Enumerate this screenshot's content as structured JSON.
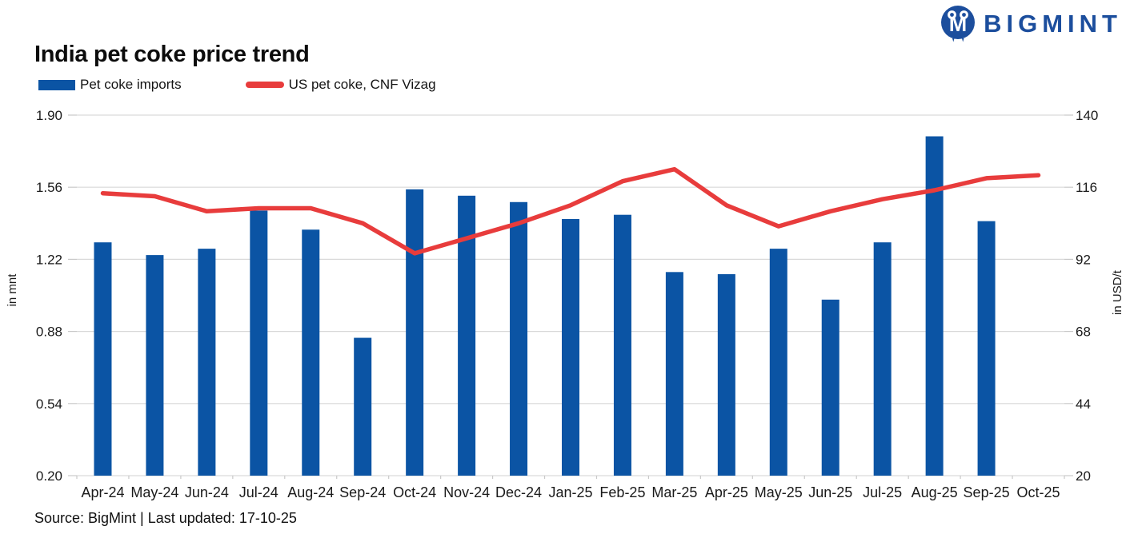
{
  "logo": {
    "text": "BIGMINT",
    "color": "#1C4E9D"
  },
  "header": {
    "title": "India pet coke price trend"
  },
  "legend": [
    {
      "label": "Pet coke imports",
      "type": "bar",
      "color": "#0B54A4"
    },
    {
      "label": "US pet coke, CNF Vizag",
      "type": "line",
      "color": "#E83C3C"
    }
  ],
  "footer": {
    "source": "Source: BigMint | Last updated: 17-10-25"
  },
  "chart_data": {
    "type": "bar+line",
    "title": "India pet coke price trend",
    "categories": [
      "Apr-24",
      "May-24",
      "Jun-24",
      "Jul-24",
      "Aug-24",
      "Sep-24",
      "Oct-24",
      "Nov-24",
      "Dec-24",
      "Jan-25",
      "Feb-25",
      "Mar-25",
      "Apr-25",
      "May-25",
      "Jun-25",
      "Jul-25",
      "Aug-25",
      "Sep-25",
      "Oct-25"
    ],
    "series": [
      {
        "name": "Pet coke imports",
        "type": "bar",
        "axis": "left",
        "color": "#0B54A4",
        "values": [
          1.3,
          1.24,
          1.27,
          1.45,
          1.36,
          0.85,
          1.55,
          1.52,
          1.49,
          1.41,
          1.43,
          1.16,
          1.15,
          1.27,
          1.03,
          1.3,
          1.8,
          1.4,
          null
        ]
      },
      {
        "name": "US pet coke, CNF Vizag",
        "type": "line",
        "axis": "right",
        "color": "#E83C3C",
        "values": [
          114,
          113,
          108,
          109,
          109,
          104,
          94,
          99,
          104,
          110,
          118,
          122,
          110,
          103,
          108,
          112,
          115,
          119,
          120
        ]
      }
    ],
    "left_axis": {
      "label": "in mnt",
      "min": 0.2,
      "max": 1.9,
      "ticks": [
        "1.90",
        "1.56",
        "1.22",
        "0.88",
        "0.54",
        "0.20"
      ]
    },
    "right_axis": {
      "label": "in USD/t",
      "min": 20,
      "max": 140,
      "ticks": [
        "140",
        "116",
        "92",
        "68",
        "44",
        "20"
      ]
    },
    "grid": true,
    "legend_position": "top-left",
    "gridline_color": "#D9D9D9",
    "tick_color": "#C9C9C9",
    "text_color": "#1A1A1A"
  }
}
